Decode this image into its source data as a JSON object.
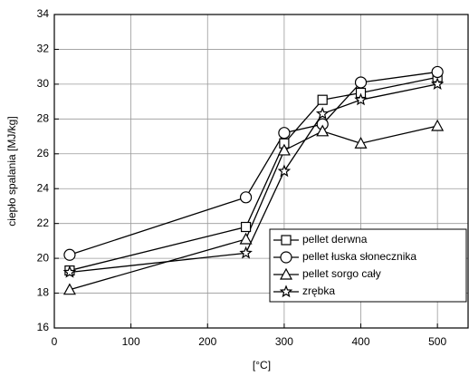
{
  "chart_data": {
    "type": "line",
    "x_label": "[°C]",
    "y_label": "ciepło spalania [MJ/kg]",
    "x": [
      20,
      250,
      300,
      350,
      400,
      500
    ],
    "series": [
      {
        "name": "pellet derwna",
        "color": "#000000",
        "marker": "square",
        "values": [
          19.3,
          21.8,
          26.6,
          29.1,
          29.5,
          30.4
        ]
      },
      {
        "name": "pellet łuska słonecznika",
        "color": "#000000",
        "marker": "circle",
        "values": [
          20.2,
          23.5,
          27.2,
          27.7,
          30.1,
          30.7
        ]
      },
      {
        "name": "pellet sorgo cały",
        "color": "#000000",
        "marker": "triangle",
        "values": [
          18.2,
          21.1,
          26.2,
          27.3,
          26.6,
          27.6
        ]
      },
      {
        "name": "zrębka",
        "color": "#000000",
        "marker": "star",
        "values": [
          19.2,
          20.3,
          25.0,
          28.3,
          29.1,
          30.0
        ]
      }
    ],
    "xlim": [
      0,
      540
    ],
    "xticks": [
      0,
      100,
      200,
      300,
      400,
      500
    ],
    "ylim": [
      16,
      34
    ],
    "yticks": [
      16,
      18,
      20,
      22,
      24,
      26,
      28,
      30,
      32,
      34
    ],
    "grid": true,
    "legend": "lower right"
  }
}
